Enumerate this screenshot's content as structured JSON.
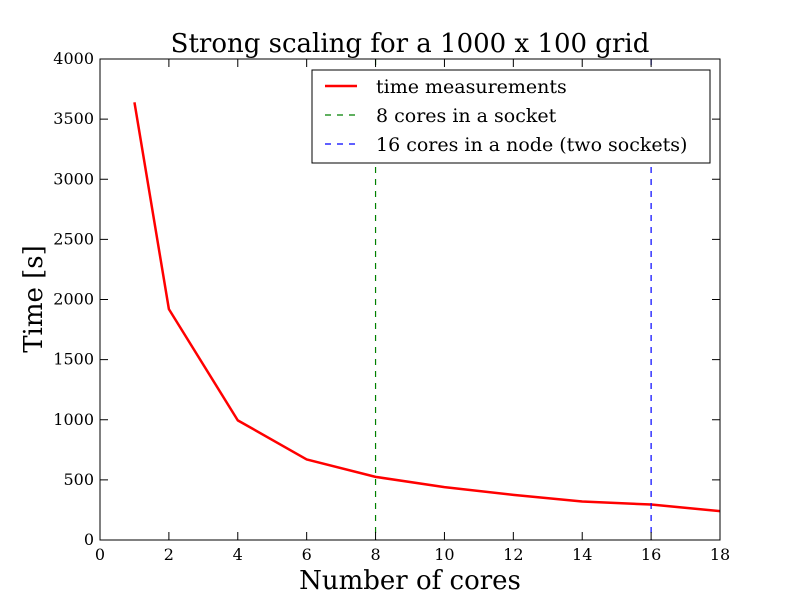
{
  "chart_data": {
    "type": "line",
    "title": "Strong scaling for a 1000 x 100 grid",
    "xlabel": "Number of cores",
    "ylabel": "Time [s]",
    "xlim": [
      0,
      18
    ],
    "ylim": [
      0,
      4000
    ],
    "x_ticks": [
      0,
      2,
      4,
      6,
      8,
      10,
      12,
      14,
      16,
      18
    ],
    "y_ticks": [
      0,
      500,
      1000,
      1500,
      2000,
      2500,
      3000,
      3500,
      4000
    ],
    "grid": false,
    "legend_position": "top-right",
    "series": [
      {
        "name": "time measurements",
        "color": "#ff0000",
        "style": "solid",
        "x": [
          1,
          2,
          4,
          6,
          8,
          10,
          12,
          14,
          16,
          18
        ],
        "y": [
          3640,
          1920,
          995,
          670,
          525,
          440,
          375,
          320,
          295,
          240
        ]
      }
    ],
    "vlines": [
      {
        "name": "8 cores in a socket",
        "x": 8,
        "color": "#008000",
        "style": "dashed"
      },
      {
        "name": "16 cores in a node (two sockets)",
        "x": 16,
        "color": "#0000ff",
        "style": "dashed"
      }
    ]
  }
}
